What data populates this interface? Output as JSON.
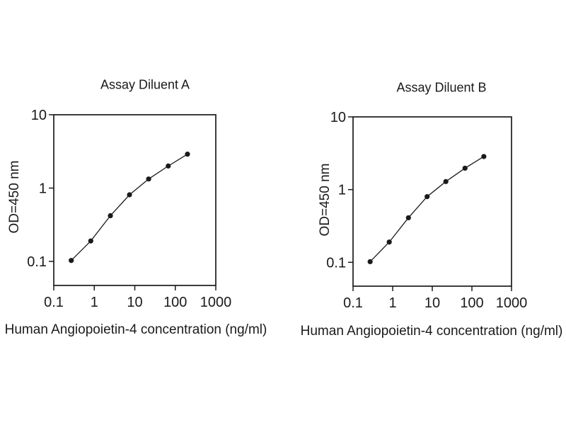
{
  "figure": {
    "background": "#ffffff",
    "ink_color": "#1a1a1a"
  },
  "chart_data": [
    {
      "type": "line",
      "title": "Assay Diluent A",
      "xlabel": "Human Angiopoietin-4 concentration (ng/ml)",
      "ylabel": "OD=450 nm",
      "x_scale": "log",
      "y_scale": "log",
      "xlim": [
        0.1,
        1000
      ],
      "ylim": [
        0.047,
        10
      ],
      "x_ticks": [
        0.1,
        1,
        10,
        100,
        1000
      ],
      "x_tick_labels": [
        "0.1",
        "1",
        "10",
        "100",
        "1000"
      ],
      "y_ticks": [
        0.1,
        1,
        10
      ],
      "y_tick_labels": [
        "0.1",
        "1",
        "10"
      ],
      "grid": false,
      "legend": null,
      "marker": "filled-circle",
      "series": [
        {
          "x": [
            0.27,
            0.82,
            2.5,
            7.4,
            22,
            67,
            200
          ],
          "y": [
            0.103,
            0.19,
            0.42,
            0.81,
            1.33,
            2.0,
            2.9
          ]
        }
      ]
    },
    {
      "type": "line",
      "title": "Assay Diluent B",
      "xlabel": "Human Angiopoietin-4 concentration (ng/ml)",
      "ylabel": "OD=450 nm",
      "x_scale": "log",
      "y_scale": "log",
      "xlim": [
        0.1,
        1000
      ],
      "ylim": [
        0.047,
        10
      ],
      "x_ticks": [
        0.1,
        1,
        10,
        100,
        1000
      ],
      "x_tick_labels": [
        "0.1",
        "1",
        "10",
        "100",
        "1000"
      ],
      "y_ticks": [
        0.1,
        1,
        10
      ],
      "y_tick_labels": [
        "0.1",
        "1",
        "10"
      ],
      "grid": false,
      "legend": null,
      "marker": "filled-circle",
      "series": [
        {
          "x": [
            0.27,
            0.82,
            2.5,
            7.4,
            22,
            67,
            200
          ],
          "y": [
            0.102,
            0.19,
            0.41,
            0.8,
            1.29,
            1.97,
            2.85
          ]
        }
      ]
    }
  ]
}
